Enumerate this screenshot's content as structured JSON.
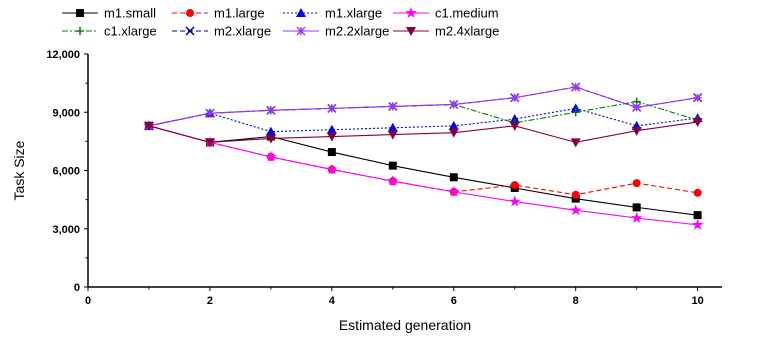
{
  "chart_data": {
    "type": "line",
    "title": "",
    "xlabel": "Estimated generation",
    "ylabel": "Task Size",
    "xlim": [
      0,
      10.4
    ],
    "ylim": [
      0,
      12000
    ],
    "x_ticks": [
      0,
      2,
      4,
      6,
      8,
      10
    ],
    "y_ticks": [
      0,
      3000,
      6000,
      9000,
      12000
    ],
    "x_tick_labels": [
      "0",
      "2",
      "4",
      "6",
      "8",
      "10"
    ],
    "y_tick_labels": [
      "0",
      "3,000",
      "6,000",
      "9,000",
      "12,000"
    ],
    "grid": false,
    "legend_position": "top",
    "x": [
      1,
      2,
      3,
      4,
      5,
      6,
      7,
      8,
      9,
      10
    ],
    "series": [
      {
        "name": "m1.small",
        "color": "#000000",
        "dash": "solid",
        "marker": "square",
        "values": [
          8300,
          7450,
          7750,
          6950,
          6250,
          5650,
          5100,
          4550,
          4100,
          3700
        ]
      },
      {
        "name": "m1.large",
        "color": "#ff0000",
        "dash": "dashed",
        "marker": "circle",
        "values": [
          8300,
          7450,
          6700,
          6050,
          5450,
          4900,
          5250,
          4750,
          5350,
          4850
        ]
      },
      {
        "name": "m1.xlarge",
        "color": "#0000ff",
        "dash": "dotted",
        "marker": "triangle",
        "values": [
          8300,
          8950,
          8000,
          8100,
          8200,
          8300,
          8650,
          9200,
          8300,
          8700
        ]
      },
      {
        "name": "c1.medium",
        "color": "#ff00ff",
        "dash": "solid",
        "marker": "star5",
        "values": [
          8300,
          7450,
          6700,
          6050,
          5450,
          4900,
          4400,
          3950,
          3550,
          3200
        ]
      },
      {
        "name": "c1.xlarge",
        "color": "#008000",
        "dash": "dashdot",
        "marker": "plus",
        "values": [
          8300,
          8950,
          9100,
          9200,
          9300,
          9400,
          8450,
          9000,
          9550,
          8600
        ]
      },
      {
        "name": "m2.xlarge",
        "color": "#000080",
        "dash": "dashed",
        "marker": "x",
        "values": [
          8300,
          8950,
          9100,
          9200,
          9300,
          9400,
          9750,
          10300,
          9250,
          9750
        ]
      },
      {
        "name": "m2.2xlarge",
        "color": "#9933ff",
        "dash": "solid",
        "marker": "asterisk",
        "values": [
          8300,
          8950,
          9100,
          9200,
          9300,
          9400,
          9750,
          10300,
          9250,
          9750
        ]
      },
      {
        "name": "m2.4xlarge",
        "color": "#800040",
        "dash": "solid",
        "marker": "downtriangle",
        "values": [
          8300,
          7450,
          7650,
          7750,
          7850,
          7950,
          8300,
          7450,
          8050,
          8500
        ]
      }
    ]
  }
}
